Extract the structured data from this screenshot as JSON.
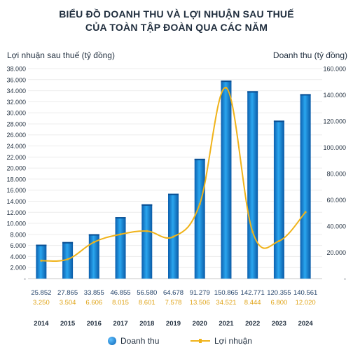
{
  "chart_data": {
    "type": "bar+line",
    "title_line1": "BIỂU ĐỒ DOANH THU VÀ LỢI NHUẬN SAU THUẾ",
    "title_line2": "CỦA TOÀN TẬP ĐOÀN QUA CÁC NĂM",
    "ylabel_left": "Lợi nhuận sau thuế (tỷ đồng)",
    "ylabel_right": "Doanh thu (tỷ đồng)",
    "ylim_left": [
      0,
      38000
    ],
    "ylim_right": [
      0,
      160000
    ],
    "left_ticks": [
      "-",
      "2.000",
      "4.000",
      "6.000",
      "8.000",
      "10.000",
      "12.000",
      "14.000",
      "16.000",
      "18.000",
      "20.000",
      "22.000",
      "24.000",
      "26.000",
      "28.000",
      "30.000",
      "32.000",
      "34.000",
      "36.000",
      "38.000"
    ],
    "right_ticks": [
      "-",
      "20.000",
      "40.000",
      "60.000",
      "80.000",
      "100.000",
      "120.000",
      "140.000",
      "160.000"
    ],
    "categories": [
      "2014",
      "2015",
      "2016",
      "2017",
      "2018",
      "2019",
      "2020",
      "2021",
      "2022",
      "2023",
      "2024"
    ],
    "revenue_labels": [
      "25.852",
      "27.865",
      "33.855",
      "46.855",
      "56.580",
      "64.678",
      "91.279",
      "150.865",
      "142.771",
      "120.355",
      "140.561"
    ],
    "profit_labels": [
      "3.250",
      "3.504",
      "6.606",
      "8.015",
      "8.601",
      "7.578",
      "13.506",
      "34.521",
      "8.444",
      "6.800",
      "12.020"
    ],
    "series": [
      {
        "name": "Doanh thu",
        "type": "bar",
        "axis": "right",
        "color": "#0a73c7",
        "values": [
          25852,
          27865,
          33855,
          46855,
          56580,
          64678,
          91279,
          150865,
          142771,
          120355,
          140561
        ]
      },
      {
        "name": "Lợi nhuận",
        "type": "line",
        "axis": "left",
        "color": "#f0b31a",
        "values": [
          3250,
          3504,
          6606,
          8015,
          8601,
          7578,
          13506,
          34521,
          8444,
          6800,
          12020
        ]
      }
    ],
    "grid": true,
    "legend_position": "bottom"
  }
}
